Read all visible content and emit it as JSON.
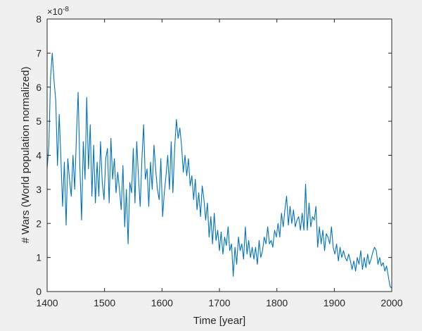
{
  "chart_data": {
    "type": "line",
    "xlabel": "Time [year]",
    "ylabel": "# Wars (World population normalized)",
    "exponent_label": {
      "base": "×10",
      "power": "-8"
    },
    "xlim": [
      1400,
      2000
    ],
    "ylim": [
      0,
      8
    ],
    "x_ticks": [
      "1400",
      "1500",
      "1600",
      "1700",
      "1800",
      "1900",
      "2000"
    ],
    "y_ticks": [
      "0",
      "1",
      "2",
      "3",
      "4",
      "5",
      "6",
      "7",
      "8"
    ],
    "grid": false,
    "line_color": "#0072bd",
    "series": [
      {
        "x": [
          1400,
          1403,
          1406,
          1409,
          1412,
          1415,
          1418,
          1421,
          1424,
          1427,
          1430,
          1433,
          1436,
          1439,
          1442,
          1445,
          1448,
          1451,
          1454,
          1457,
          1460,
          1463,
          1466,
          1469,
          1472,
          1475,
          1478,
          1481,
          1484,
          1487,
          1490,
          1493,
          1496,
          1499,
          1502,
          1505,
          1508,
          1511,
          1514,
          1517,
          1520,
          1523,
          1526,
          1529,
          1532,
          1535,
          1538,
          1541,
          1544,
          1547,
          1550,
          1553,
          1556,
          1559,
          1562,
          1565,
          1568,
          1571,
          1574,
          1577,
          1580,
          1583,
          1586,
          1589,
          1592,
          1595,
          1598,
          1601,
          1604,
          1607,
          1610,
          1613,
          1616,
          1619,
          1622,
          1625,
          1628,
          1631,
          1634,
          1637,
          1640,
          1643,
          1646,
          1649,
          1652,
          1655,
          1658,
          1661,
          1664,
          1667,
          1670,
          1673,
          1676,
          1679,
          1682,
          1685,
          1688,
          1691,
          1694,
          1697,
          1700,
          1703,
          1706,
          1709,
          1712,
          1715,
          1718,
          1721,
          1724,
          1727,
          1730,
          1733,
          1736,
          1739,
          1742,
          1745,
          1748,
          1751,
          1754,
          1757,
          1760,
          1763,
          1766,
          1769,
          1772,
          1775,
          1778,
          1781,
          1784,
          1787,
          1790,
          1793,
          1796,
          1799,
          1802,
          1805,
          1808,
          1811,
          1814,
          1817,
          1820,
          1823,
          1826,
          1829,
          1832,
          1835,
          1838,
          1841,
          1844,
          1847,
          1850,
          1853,
          1856,
          1859,
          1862,
          1865,
          1868,
          1871,
          1874,
          1877,
          1880,
          1883,
          1886,
          1889,
          1892,
          1895,
          1898,
          1901,
          1904,
          1907,
          1910,
          1913,
          1916,
          1919,
          1922,
          1925,
          1928,
          1931,
          1934,
          1937,
          1940,
          1943,
          1946,
          1949,
          1952,
          1955,
          1958,
          1961,
          1964,
          1967,
          1970,
          1973,
          1976,
          1979,
          1982,
          1985,
          1988,
          1991,
          1994,
          1997,
          2000
        ],
        "y": [
          3.6,
          4.3,
          6.3,
          7.0,
          6.2,
          5.6,
          3.7,
          5.2,
          3.9,
          2.5,
          3.8,
          1.95,
          3.9,
          3.3,
          2.8,
          4.0,
          3.0,
          4.6,
          5.85,
          3.7,
          2.1,
          4.4,
          3.3,
          5.7,
          3.6,
          4.9,
          2.8,
          4.3,
          2.6,
          3.8,
          2.8,
          4.4,
          3.2,
          2.7,
          3.9,
          4.2,
          2.6,
          4.5,
          3.3,
          3.9,
          2.9,
          3.5,
          3.0,
          2.4,
          3.7,
          1.9,
          3.0,
          1.4,
          3.2,
          2.9,
          4.2,
          2.6,
          4.4,
          3.4,
          2.5,
          3.9,
          4.9,
          3.3,
          3.6,
          2.5,
          3.8,
          3.0,
          4.3,
          3.6,
          3.0,
          2.7,
          3.9,
          2.2,
          2.9,
          3.4,
          4.0,
          3.0,
          4.4,
          2.9,
          4.2,
          5.05,
          4.5,
          4.8,
          4.3,
          3.5,
          4.0,
          3.4,
          3.9,
          3.1,
          3.4,
          2.7,
          3.3,
          2.4,
          2.9,
          2.2,
          3.1,
          2.7,
          2.1,
          2.6,
          1.6,
          2.2,
          1.4,
          2.3,
          1.5,
          1.8,
          1.2,
          1.75,
          1.1,
          1.6,
          1.35,
          1.9,
          1.2,
          1.4,
          0.45,
          1.3,
          0.8,
          1.6,
          1.2,
          1.4,
          0.95,
          1.9,
          1.1,
          1.5,
          1.0,
          1.3,
          0.95,
          1.3,
          0.8,
          1.5,
          1.0,
          1.2,
          1.6,
          1.4,
          1.9,
          1.4,
          1.5,
          1.3,
          1.8,
          1.6,
          2.0,
          1.6,
          2.3,
          1.9,
          2.4,
          2.8,
          1.95,
          2.5,
          2.0,
          2.4,
          1.9,
          2.1,
          2.2,
          1.8,
          2.3,
          1.8,
          3.15,
          1.8,
          2.6,
          1.9,
          2.2,
          2.1,
          2.5,
          1.3,
          1.9,
          1.4,
          1.8,
          1.2,
          1.7,
          1.6,
          1.4,
          1.9,
          1.3,
          1.1,
          1.4,
          0.9,
          1.3,
          1.0,
          1.2,
          1.0,
          0.9,
          1.1,
          0.9,
          0.65,
          0.9,
          0.6,
          1.0,
          0.8,
          1.2,
          0.65,
          1.0,
          0.7,
          1.1,
          0.8,
          0.95,
          1.15,
          1.3,
          1.2,
          0.8,
          1.0,
          0.75,
          0.85,
          0.6,
          0.75,
          0.45,
          0.15,
          0.1
        ]
      }
    ]
  }
}
